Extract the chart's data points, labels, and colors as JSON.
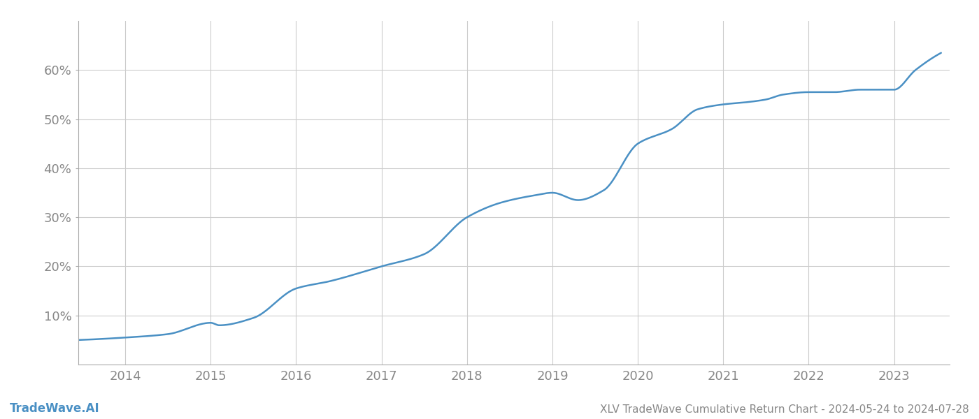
{
  "title": "XLV TradeWave Cumulative Return Chart - 2024-05-24 to 2024-07-28",
  "watermark": "TradeWave.AI",
  "line_color": "#4a90c4",
  "background_color": "#ffffff",
  "grid_color": "#cccccc",
  "text_color": "#888888",
  "x_years": [
    2014,
    2015,
    2016,
    2017,
    2018,
    2019,
    2020,
    2021,
    2022,
    2023
  ],
  "x_key": [
    2013.45,
    2014.0,
    2014.5,
    2015.0,
    2015.1,
    2015.5,
    2016.0,
    2016.4,
    2017.0,
    2017.5,
    2018.0,
    2018.4,
    2018.8,
    2019.0,
    2019.3,
    2019.6,
    2020.0,
    2020.4,
    2020.7,
    2021.0,
    2021.3,
    2021.5,
    2021.7,
    2022.0,
    2022.3,
    2022.6,
    2022.9,
    2023.0,
    2023.25,
    2023.55
  ],
  "y_key": [
    5.0,
    5.5,
    6.2,
    8.5,
    8.0,
    9.5,
    15.5,
    17.0,
    20.0,
    22.5,
    30.0,
    33.0,
    34.5,
    35.0,
    33.5,
    35.5,
    45.0,
    48.0,
    52.0,
    53.0,
    53.5,
    54.0,
    55.0,
    55.5,
    55.5,
    56.0,
    56.0,
    56.0,
    60.0,
    63.5
  ],
  "yticks": [
    10,
    20,
    30,
    40,
    50,
    60
  ],
  "ylim": [
    0,
    70
  ],
  "xlim": [
    2013.45,
    2023.65
  ],
  "tick_fontsize": 13,
  "title_fontsize": 11,
  "watermark_fontsize": 12,
  "line_width": 1.8
}
